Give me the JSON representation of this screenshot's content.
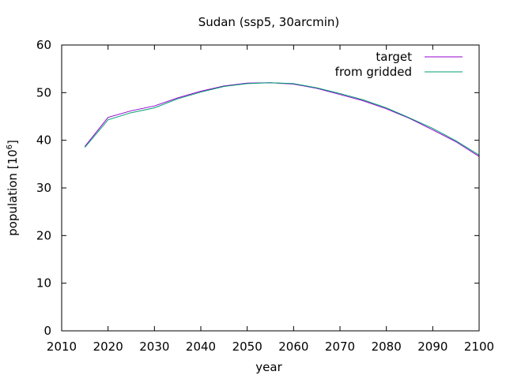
{
  "chart_data": {
    "type": "line",
    "title": "Sudan (ssp5, 30arcmin)",
    "xlabel": "year",
    "ylabel_main": "population [10",
    "ylabel_sup": "6",
    "ylabel_close": "]",
    "xlim": [
      2010,
      2100
    ],
    "ylim": [
      0,
      60
    ],
    "x_ticks": [
      2010,
      2020,
      2030,
      2040,
      2050,
      2060,
      2070,
      2080,
      2090,
      2100
    ],
    "y_ticks": [
      0,
      10,
      20,
      30,
      40,
      50,
      60
    ],
    "legend_position": "top-right",
    "series": [
      {
        "name": "target",
        "color": "#9400d3",
        "x": [
          2015,
          2020,
          2025,
          2030,
          2035,
          2040,
          2045,
          2050,
          2055,
          2060,
          2065,
          2070,
          2075,
          2080,
          2085,
          2090,
          2095,
          2100
        ],
        "y": [
          38.7,
          44.8,
          46.2,
          47.2,
          48.9,
          50.3,
          51.4,
          52.0,
          52.1,
          51.8,
          50.9,
          49.6,
          48.3,
          46.6,
          44.6,
          42.2,
          39.7,
          36.6
        ]
      },
      {
        "name": "from gridded",
        "color": "#009e73",
        "x": [
          2015,
          2020,
          2025,
          2030,
          2035,
          2040,
          2045,
          2050,
          2055,
          2060,
          2065,
          2070,
          2075,
          2080,
          2085,
          2090,
          2095,
          2100
        ],
        "y": [
          38.5,
          44.3,
          45.8,
          46.8,
          48.7,
          50.1,
          51.3,
          51.9,
          52.1,
          51.9,
          51.0,
          49.8,
          48.5,
          46.8,
          44.7,
          42.5,
          39.9,
          36.9
        ]
      }
    ]
  }
}
